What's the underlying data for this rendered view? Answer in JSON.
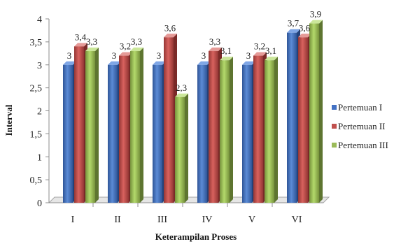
{
  "chart_data": {
    "type": "bar",
    "categories": [
      "I",
      "II",
      "III",
      "IV",
      "V",
      "VI"
    ],
    "series": [
      {
        "name": "Pertemuan I",
        "values": [
          3,
          3,
          3,
          3,
          3,
          3.7
        ],
        "labels": [
          "3",
          "3",
          "3",
          "3",
          "3",
          "3,7"
        ],
        "color": "#4472C4"
      },
      {
        "name": "Pertemuan II",
        "values": [
          3.4,
          3.2,
          3.6,
          3.3,
          3.2,
          3.6
        ],
        "labels": [
          "3,4",
          "3,2",
          "3,6",
          "3,3",
          "3,2",
          "3,6"
        ],
        "color": "#C0504D"
      },
      {
        "name": "Pertemuan III",
        "values": [
          3.3,
          3.3,
          2.3,
          3.1,
          3.1,
          3.9
        ],
        "labels": [
          "3,3",
          "3,3",
          "2,3",
          "3,1",
          "3,1",
          "3,9"
        ],
        "color": "#9BBB59"
      }
    ],
    "yticks": [
      "0",
      "0,5",
      "1",
      "1,5",
      "2",
      "2,5",
      "3",
      "3,5",
      "4"
    ],
    "ylim": [
      0,
      4
    ],
    "xlabel": "Keterampilan Proses",
    "ylabel": "Interval",
    "grid": false,
    "legend_position": "right"
  }
}
